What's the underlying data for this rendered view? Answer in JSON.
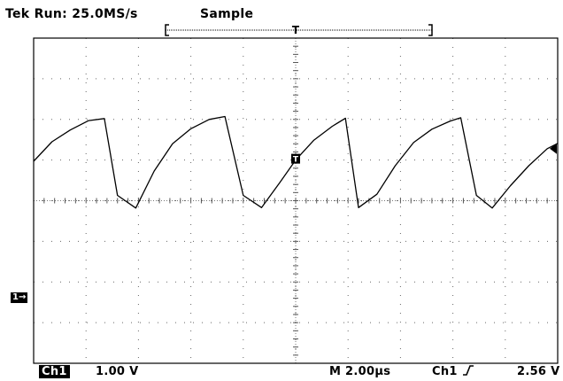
{
  "header": {
    "run_status": "Tek Run: 25.0MS/s",
    "acq_mode": "Sample"
  },
  "footer": {
    "channel": "Ch1",
    "volts_per_div": "1.00 V",
    "time_per_div": "M 2.00µs",
    "trigger_source": "Ch1",
    "trigger_slope_icon": "rising-edge-icon",
    "trigger_level": "2.56 V"
  },
  "markers": {
    "ch1_ground": "1→",
    "trigger_position": "T",
    "trigger_point": "T",
    "trigger_level_icon": "left-arrow-icon"
  },
  "chart_data": {
    "type": "line",
    "grid": true,
    "x_divisions": 10,
    "y_divisions": 8,
    "x_unit_per_div_us": 2.0,
    "y_unit_per_div_v": 1.0,
    "xlim_us": [
      -10,
      10
    ],
    "ylim_v": [
      -1.0,
      7.0
    ],
    "series": [
      {
        "color": "#000000",
        "x": [
          -10.0,
          -9.3,
          -8.6,
          -7.9,
          -7.3,
          -6.8,
          -6.1,
          -5.4,
          -4.7,
          -4.0,
          -3.3,
          -2.7,
          -2.0,
          -1.3,
          -0.6,
          0.0,
          0.7,
          1.4,
          1.9,
          2.4,
          3.1,
          3.8,
          4.5,
          5.2,
          5.9,
          6.3,
          6.9,
          7.5,
          8.2,
          8.9,
          9.6,
          10.0
        ],
        "y": [
          3.97,
          4.45,
          4.74,
          4.97,
          5.02,
          3.13,
          2.82,
          3.73,
          4.4,
          4.77,
          5.0,
          5.07,
          3.13,
          2.83,
          3.45,
          4.0,
          4.49,
          4.83,
          5.03,
          2.83,
          3.16,
          3.86,
          4.43,
          4.76,
          4.96,
          5.04,
          3.13,
          2.82,
          3.37,
          3.86,
          4.28,
          4.41
        ]
      }
    ]
  }
}
